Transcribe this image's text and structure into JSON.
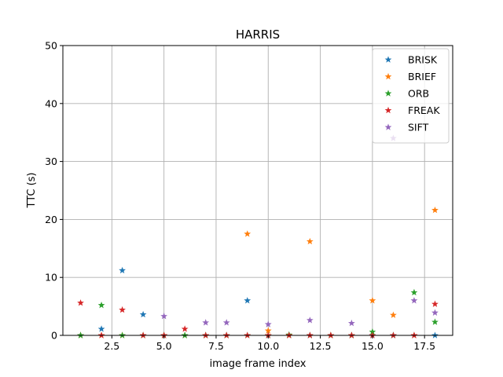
{
  "chart_data": {
    "type": "scatter",
    "title": "HARRIS",
    "xlabel": "image frame index",
    "ylabel": "TTC (s)",
    "xlim": [
      0.15,
      18.85
    ],
    "ylim": [
      0,
      50
    ],
    "xticks": [
      2.5,
      5.0,
      7.5,
      10.0,
      12.5,
      15.0,
      17.5
    ],
    "xtick_labels": [
      "2.5",
      "5.0",
      "7.5",
      "10.0",
      "12.5",
      "15.0",
      "17.5"
    ],
    "yticks": [
      0,
      10,
      20,
      30,
      40,
      50
    ],
    "ytick_labels": [
      "0",
      "10",
      "20",
      "30",
      "40",
      "50"
    ],
    "grid": true,
    "legend_position": "top-right",
    "marker": "star",
    "series": [
      {
        "name": "BRISK",
        "color": "#1f77b4",
        "x": [
          1,
          2,
          3,
          4,
          5,
          6,
          7,
          8,
          9,
          10,
          11,
          12,
          13,
          14,
          15,
          16,
          17,
          18
        ],
        "y": [
          0,
          1.1,
          11.2,
          3.6,
          0,
          0,
          0,
          0,
          6.0,
          0,
          0,
          0,
          0,
          0,
          0,
          0,
          0,
          0
        ]
      },
      {
        "name": "BRIEF",
        "color": "#ff7f0e",
        "x": [
          1,
          2,
          3,
          4,
          5,
          6,
          7,
          8,
          9,
          10,
          11,
          12,
          13,
          14,
          15,
          16,
          17,
          18
        ],
        "y": [
          0,
          0,
          0,
          0,
          0,
          0,
          0,
          0,
          17.5,
          0.8,
          0,
          16.2,
          0,
          0,
          6.0,
          3.5,
          0,
          21.6
        ]
      },
      {
        "name": "ORB",
        "color": "#2ca02c",
        "x": [
          1,
          2,
          3,
          4,
          5,
          6,
          7,
          8,
          9,
          10,
          11,
          12,
          13,
          14,
          15,
          16,
          17,
          18
        ],
        "y": [
          0,
          5.2,
          0,
          0,
          0,
          0,
          0,
          0,
          0,
          0,
          0.1,
          0,
          0,
          0,
          0.6,
          0,
          7.4,
          2.3
        ]
      },
      {
        "name": "FREAK",
        "color": "#d62728",
        "x": [
          1,
          2,
          3,
          4,
          5,
          6,
          7,
          8,
          9,
          10,
          11,
          12,
          13,
          14,
          15,
          16,
          17,
          18
        ],
        "y": [
          5.6,
          0,
          4.4,
          0,
          0,
          1.1,
          0,
          0,
          0,
          0,
          0,
          0,
          0,
          0,
          0,
          0,
          0,
          5.4
        ]
      },
      {
        "name": "SIFT",
        "color": "#9467bd",
        "x": [
          5,
          7,
          8,
          10,
          12,
          14,
          16,
          17,
          18
        ],
        "y": [
          3.3,
          2.2,
          2.2,
          1.9,
          2.6,
          2.1,
          34.0,
          6.0,
          3.9
        ]
      }
    ]
  }
}
